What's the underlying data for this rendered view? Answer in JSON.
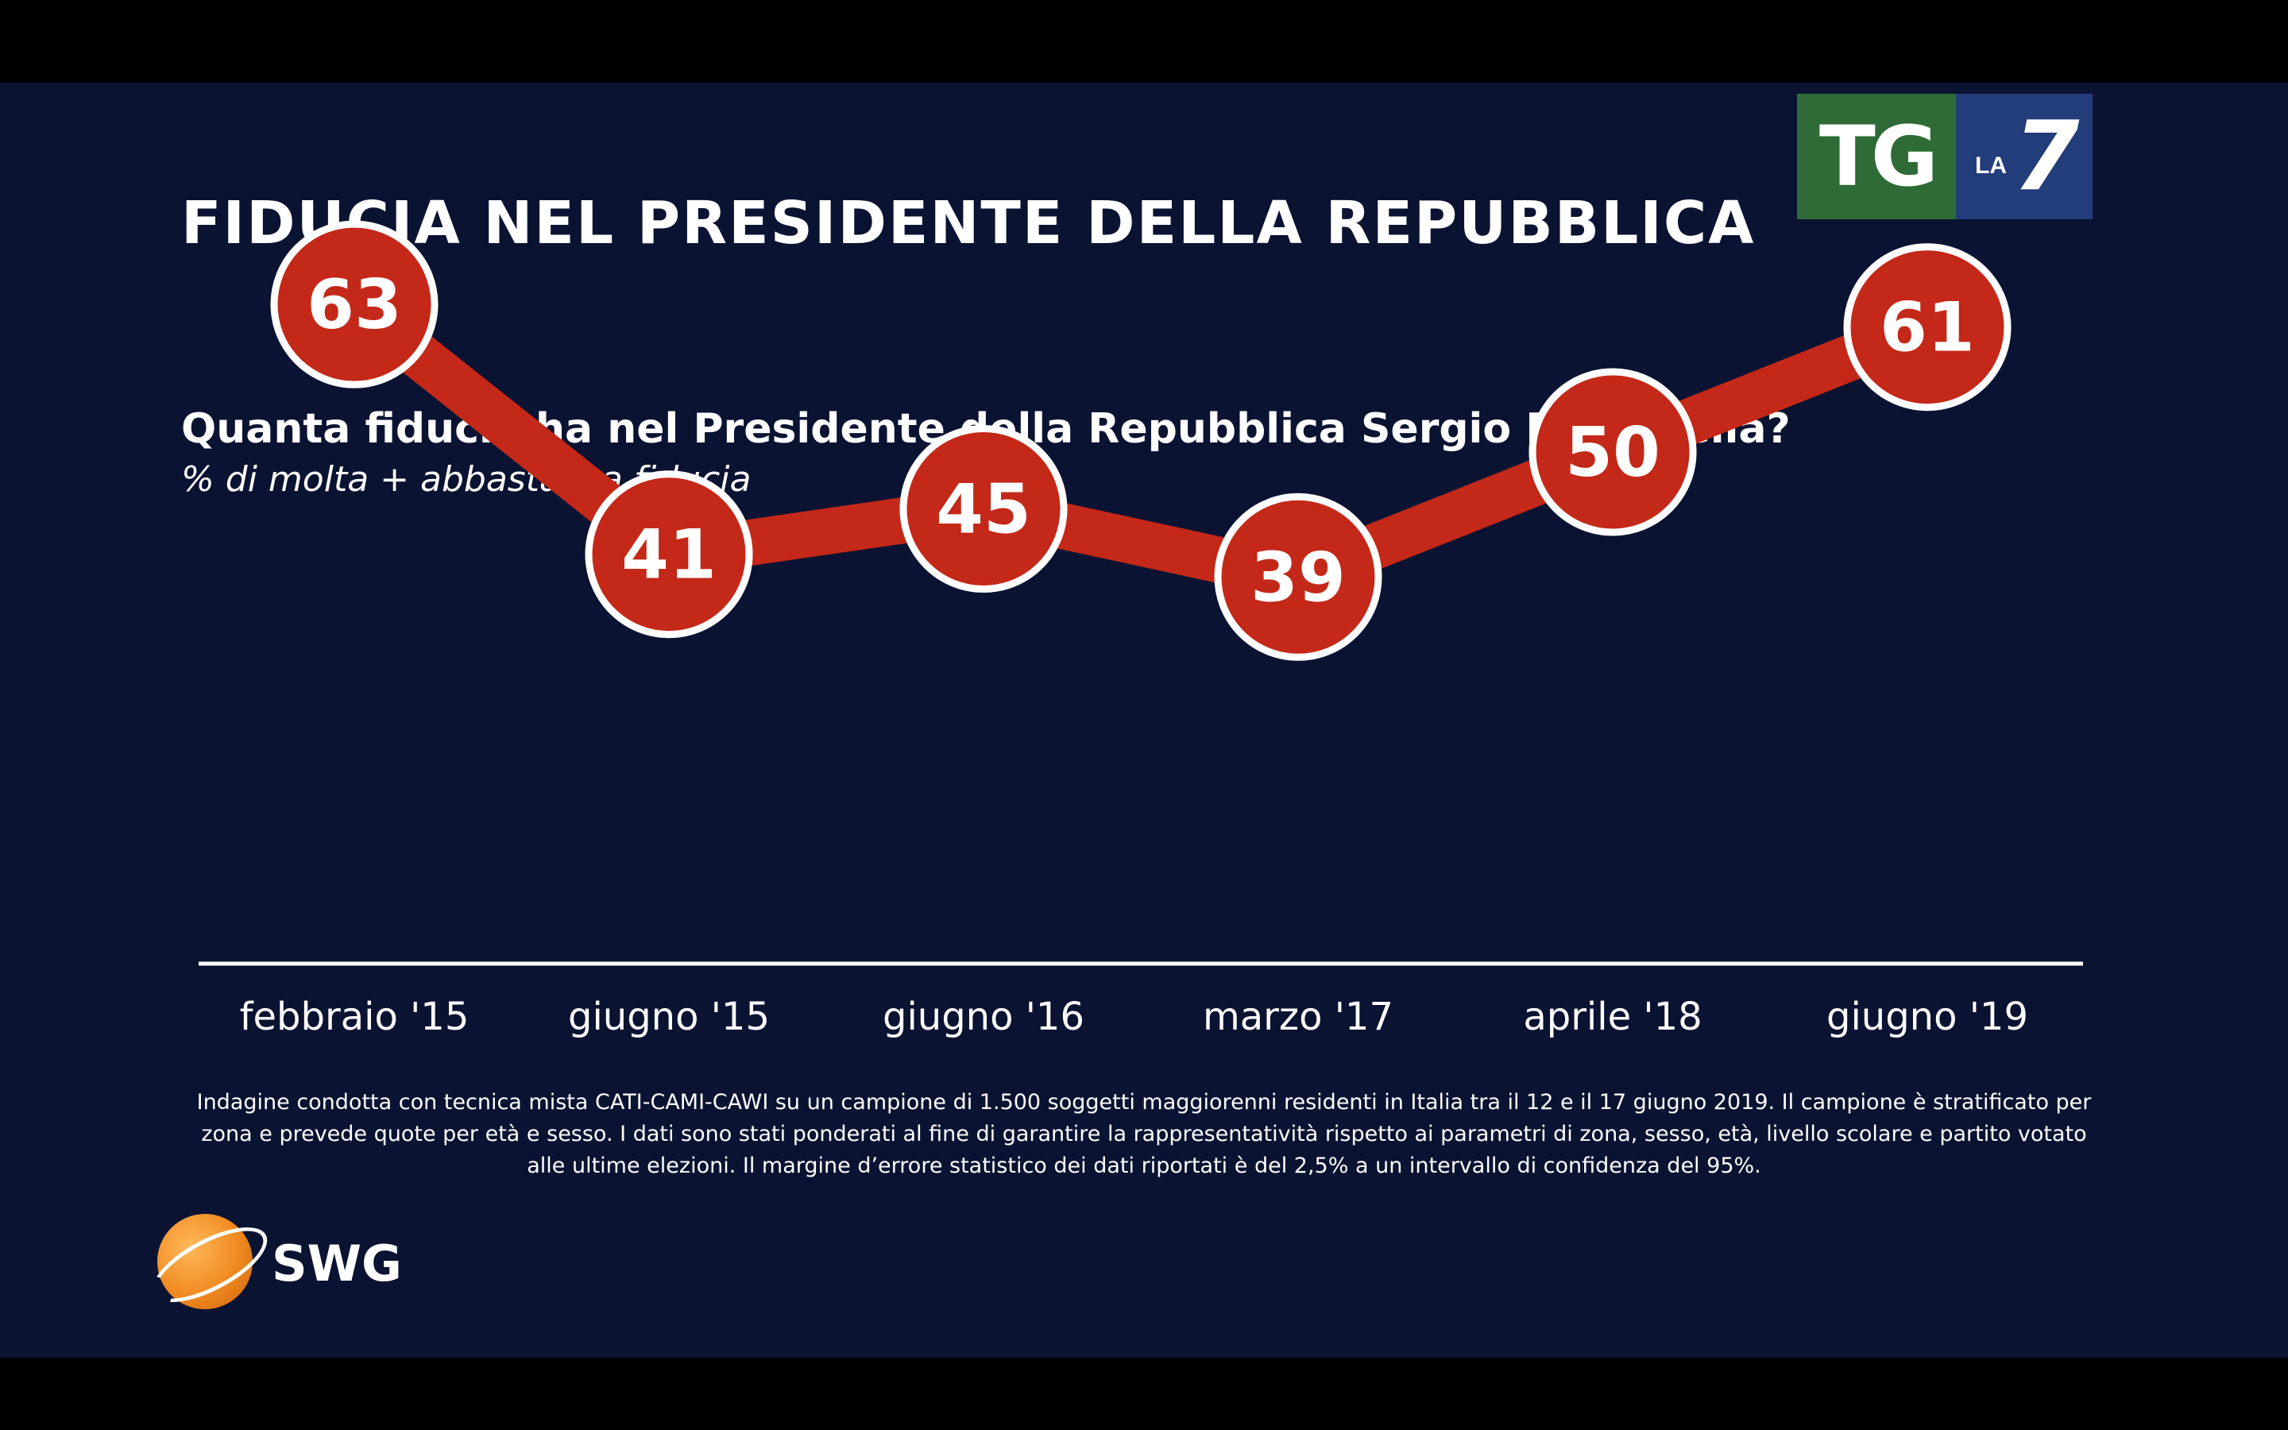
{
  "header": {
    "title": "FIDUCIA NEL PRESIDENTE DELLA REPUBBLICA",
    "question": "Quanta fiducia ha nel Presidente della Repubblica Sergio Mattarella?",
    "subtitle": "% di molta + abbastanza fiducia"
  },
  "brand": {
    "tg_text": "TG",
    "la_text": "LA",
    "seven_text": "7",
    "swg_text": "SWG"
  },
  "footnote": "Indagine condotta con tecnica mista CATI-CAMI-CAWI su un campione di 1.500 soggetti maggiorenni residenti in Italia tra il 12 e il 17 giugno 2019. Il campione è stratificato per zona e prevede quote per età e sesso. I dati sono stati ponderati al fine di garantire la rappresentatività rispetto ai parametri di zona, sesso, età, livello scolare e partito votato alle ultime elezioni. Il margine d’errore statistico dei dati riportati è del 2,5% a un intervallo di confidenza del 95%.",
  "colors": {
    "background": "#0b1332",
    "line": "#c42818",
    "marker": "#c42818",
    "marker_border": "#ffffff",
    "text": "#ffffff"
  },
  "chart_data": {
    "type": "line",
    "title": "FIDUCIA NEL PRESIDENTE DELLA REPUBBLICA",
    "subtitle": "% di molta + abbastanza fiducia",
    "categories": [
      "febbraio '15",
      "giugno '15",
      "giugno '16",
      "marzo '17",
      "aprile '18",
      "giugno '19"
    ],
    "values": [
      63,
      41,
      45,
      39,
      50,
      61
    ],
    "xlabel": "",
    "ylabel": "",
    "grid": false,
    "legend": "none",
    "data_labels": true
  }
}
